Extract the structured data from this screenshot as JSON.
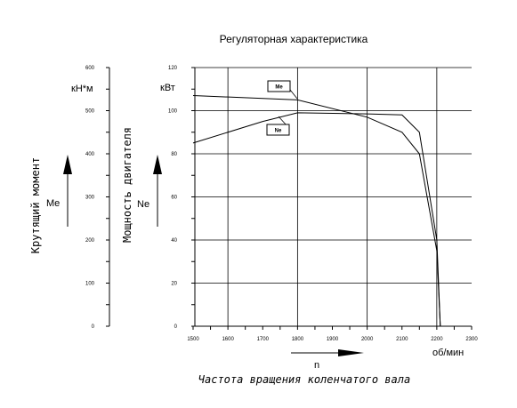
{
  "chart_data": {
    "type": "line",
    "title": "Регуляторная характеристика",
    "xlabel": "Частота вращения коленчатого вала",
    "x_symbol": "n",
    "x_unit": "об/мин",
    "xlim": [
      1500,
      2300
    ],
    "x_ticks": [
      1500,
      1600,
      1700,
      1800,
      1900,
      2000,
      2100,
      2200,
      2300
    ],
    "grid": true,
    "y_axes": [
      {
        "id": "torque",
        "label": "Крутящий момент",
        "symbol": "Me",
        "unit": "кН*м",
        "ylim": [
          0,
          600
        ],
        "ticks": [
          0,
          100,
          200,
          300,
          400,
          500,
          600
        ]
      },
      {
        "id": "power",
        "label": "Мощность двигателя",
        "symbol": "Ne",
        "unit": "кВт",
        "ylim": [
          0,
          120
        ],
        "ticks": [
          0,
          20,
          40,
          60,
          80,
          100,
          120
        ]
      }
    ],
    "series": [
      {
        "name": "Me",
        "axis": "power",
        "x": [
          1500,
          1800,
          2000,
          2100,
          2150,
          2200,
          2210
        ],
        "y": [
          107,
          105,
          97,
          90,
          80,
          35,
          0
        ]
      },
      {
        "name": "Ne",
        "axis": "power",
        "x": [
          1500,
          1700,
          1800,
          2000,
          2100,
          2150,
          2200,
          2210
        ],
        "y": [
          85,
          95,
          99,
          98.5,
          98,
          90,
          40,
          0
        ]
      }
    ]
  }
}
